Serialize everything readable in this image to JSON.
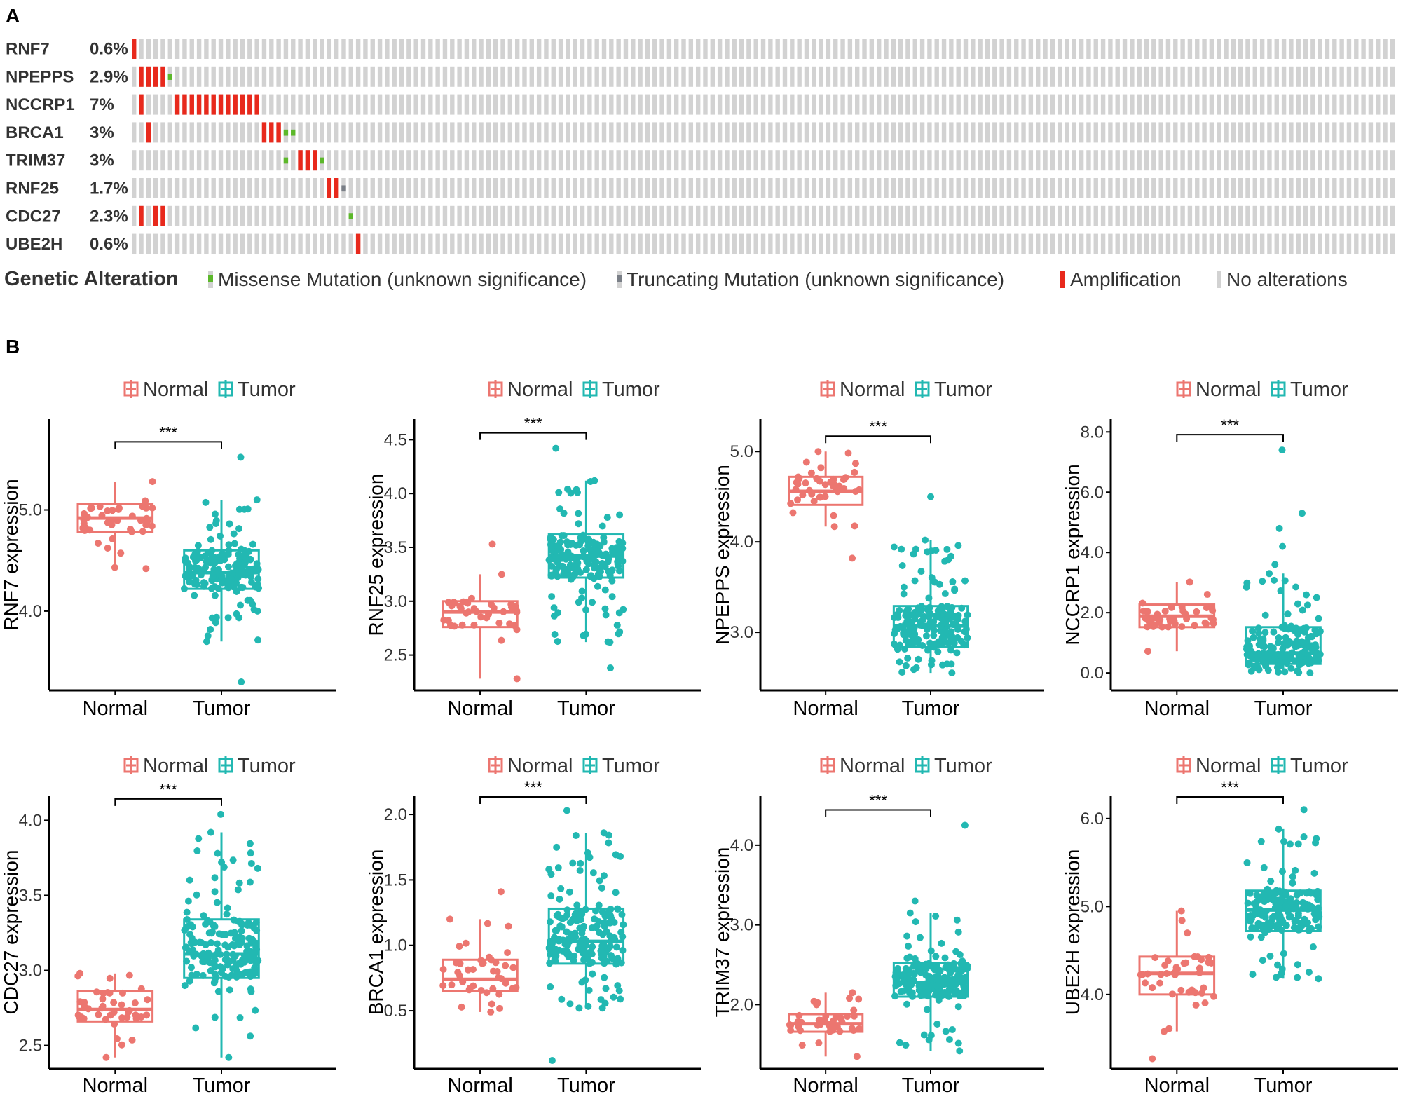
{
  "panel_a_label": "A",
  "panel_b_label": "B",
  "colors": {
    "amplification": "#e8291c",
    "missense": "#5cb82a",
    "truncating": "#7a7f87",
    "no_alteration": "#d2d2d2",
    "normal": "#ec7670",
    "tumor": "#22b8b2"
  },
  "chart_data": [
    {
      "type": "oncoprint",
      "title": "Genetic Alteration",
      "genes": [
        {
          "name": "RNF7",
          "pct": "0.6%"
        },
        {
          "name": "NPEPPS",
          "pct": "2.9%"
        },
        {
          "name": "NCCRP1",
          "pct": "7%"
        },
        {
          "name": "BRCA1",
          "pct": "3%"
        },
        {
          "name": "TRIM37",
          "pct": "3%"
        },
        {
          "name": "RNF25",
          "pct": "1.7%"
        },
        {
          "name": "CDC27",
          "pct": "2.3%"
        },
        {
          "name": "UBE2H",
          "pct": "0.6%"
        }
      ],
      "n_samples": 175,
      "alterations": [
        {
          "gene": "RNF7",
          "type": "amplification",
          "samples": [
            0
          ]
        },
        {
          "gene": "NPEPPS",
          "type": "amplification",
          "samples": [
            1,
            2,
            3,
            4
          ]
        },
        {
          "gene": "NPEPPS",
          "type": "missense",
          "samples": [
            5
          ]
        },
        {
          "gene": "NCCRP1",
          "type": "amplification",
          "samples": [
            1,
            6,
            7,
            8,
            9,
            10,
            11,
            12,
            13,
            14,
            15,
            16,
            17
          ]
        },
        {
          "gene": "BRCA1",
          "type": "amplification",
          "samples": [
            2,
            18,
            19,
            20
          ]
        },
        {
          "gene": "BRCA1",
          "type": "missense",
          "samples": [
            21,
            22
          ]
        },
        {
          "gene": "TRIM37",
          "type": "missense",
          "samples": [
            21,
            26
          ]
        },
        {
          "gene": "TRIM37",
          "type": "amplification",
          "samples": [
            23,
            24,
            25
          ]
        },
        {
          "gene": "RNF25",
          "type": "amplification",
          "samples": [
            27,
            28
          ]
        },
        {
          "gene": "RNF25",
          "type": "truncating",
          "samples": [
            29
          ]
        },
        {
          "gene": "CDC27",
          "type": "amplification",
          "samples": [
            1,
            3,
            4
          ]
        },
        {
          "gene": "CDC27",
          "type": "missense",
          "samples": [
            30
          ]
        },
        {
          "gene": "UBE2H",
          "type": "amplification",
          "samples": [
            31
          ]
        }
      ],
      "legend": [
        {
          "type": "missense",
          "label": "Missense Mutation (unknown significance)"
        },
        {
          "type": "truncating",
          "label": "Truncating Mutation (unknown significance)"
        },
        {
          "type": "amplification",
          "label": "Amplification"
        },
        {
          "type": "no_alteration",
          "label": "No alterations"
        }
      ]
    },
    {
      "type": "box",
      "gene": "RNF7",
      "ylabel": "RNF7 expression",
      "ylim": [
        3.3,
        5.8
      ],
      "yticks": [
        "4.0",
        "5.0"
      ],
      "categories": [
        "Normal",
        "Tumor"
      ],
      "legend": [
        "Normal",
        "Tumor"
      ],
      "significance": "***",
      "groups": [
        {
          "name": "Normal",
          "q1": 4.78,
          "median": 4.92,
          "q3": 5.06,
          "whisker_low": 4.42,
          "whisker_high": 5.28,
          "n": 40,
          "outliers": []
        },
        {
          "name": "Tumor",
          "q1": 4.22,
          "median": 4.38,
          "q3": 4.6,
          "whisker_low": 3.7,
          "whisker_high": 5.1,
          "n": 180,
          "outliers": [
            3.3,
            5.52
          ]
        }
      ]
    },
    {
      "type": "box",
      "gene": "RNF25",
      "ylabel": "RNF25 expression",
      "ylim": [
        2.25,
        4.6
      ],
      "yticks": [
        "2.5",
        "3.0",
        "3.5",
        "4.0",
        "4.5"
      ],
      "categories": [
        "Normal",
        "Tumor"
      ],
      "legend": [
        "Normal",
        "Tumor"
      ],
      "significance": "***",
      "groups": [
        {
          "name": "Normal",
          "q1": 2.76,
          "median": 2.9,
          "q3": 3.0,
          "whisker_low": 2.28,
          "whisker_high": 3.25,
          "n": 40,
          "outliers": [
            3.53
          ]
        },
        {
          "name": "Tumor",
          "q1": 3.22,
          "median": 3.42,
          "q3": 3.62,
          "whisker_low": 2.62,
          "whisker_high": 4.12,
          "n": 180,
          "outliers": [
            2.38,
            4.42
          ]
        }
      ]
    },
    {
      "type": "box",
      "gene": "NPEPPS",
      "ylabel": "NPEPPS expression",
      "ylim": [
        2.45,
        5.25
      ],
      "yticks": [
        "3.0",
        "4.0",
        "5.0"
      ],
      "categories": [
        "Normal",
        "Tumor"
      ],
      "legend": [
        "Normal",
        "Tumor"
      ],
      "significance": "***",
      "groups": [
        {
          "name": "Normal",
          "q1": 4.41,
          "median": 4.56,
          "q3": 4.72,
          "whisker_low": 4.17,
          "whisker_high": 5.0,
          "n": 40,
          "outliers": [
            3.82
          ]
        },
        {
          "name": "Tumor",
          "q1": 2.84,
          "median": 3.07,
          "q3": 3.29,
          "whisker_low": 2.55,
          "whisker_high": 4.02,
          "n": 180,
          "outliers": [
            4.5
          ]
        }
      ]
    },
    {
      "type": "box",
      "gene": "NCCRP1",
      "ylabel": "NCCRP1 expression",
      "ylim": [
        -0.3,
        8.1
      ],
      "yticks": [
        "0.0",
        "2.0",
        "4.0",
        "6.0",
        "8.0"
      ],
      "categories": [
        "Normal",
        "Tumor"
      ],
      "legend": [
        "Normal",
        "Tumor"
      ],
      "significance": "***",
      "groups": [
        {
          "name": "Normal",
          "q1": 1.52,
          "median": 1.88,
          "q3": 2.27,
          "whisker_low": 0.72,
          "whisker_high": 3.02,
          "n": 40,
          "outliers": []
        },
        {
          "name": "Tumor",
          "q1": 0.3,
          "median": 0.66,
          "q3": 1.52,
          "whisker_low": 0.0,
          "whisker_high": 3.3,
          "n": 180,
          "outliers": [
            3.6,
            4.2,
            4.8,
            5.3,
            7.4
          ]
        }
      ]
    },
    {
      "type": "box",
      "gene": "CDC27",
      "ylabel": "CDC27 expression",
      "ylim": [
        2.4,
        4.1
      ],
      "yticks": [
        "2.5",
        "3.0",
        "3.5",
        "4.0"
      ],
      "categories": [
        "Normal",
        "Tumor"
      ],
      "legend": [
        "Normal",
        "Tumor"
      ],
      "significance": "***",
      "groups": [
        {
          "name": "Normal",
          "q1": 2.66,
          "median": 2.74,
          "q3": 2.86,
          "whisker_low": 2.42,
          "whisker_high": 2.98,
          "n": 40,
          "outliers": []
        },
        {
          "name": "Tumor",
          "q1": 2.95,
          "median": 3.11,
          "q3": 3.34,
          "whisker_low": 2.42,
          "whisker_high": 3.92,
          "n": 180,
          "outliers": [
            4.04
          ]
        }
      ]
    },
    {
      "type": "box",
      "gene": "BRCA1",
      "ylabel": "BRCA1 expression",
      "ylim": [
        0.12,
        2.07
      ],
      "yticks": [
        "0.5",
        "1.0",
        "1.5",
        "2.0"
      ],
      "categories": [
        "Normal",
        "Tumor"
      ],
      "legend": [
        "Normal",
        "Tumor"
      ],
      "significance": "***",
      "groups": [
        {
          "name": "Normal",
          "q1": 0.65,
          "median": 0.74,
          "q3": 0.89,
          "whisker_low": 0.49,
          "whisker_high": 1.2,
          "n": 40,
          "outliers": [
            1.41
          ]
        },
        {
          "name": "Tumor",
          "q1": 0.86,
          "median": 1.03,
          "q3": 1.28,
          "whisker_low": 0.52,
          "whisker_high": 1.86,
          "n": 180,
          "outliers": [
            0.12,
            2.03
          ]
        }
      ]
    },
    {
      "type": "box",
      "gene": "TRIM37",
      "ylabel": "TRIM37 expression",
      "ylim": [
        1.3,
        4.5
      ],
      "yticks": [
        "2.0",
        "3.0",
        "4.0"
      ],
      "categories": [
        "Normal",
        "Tumor"
      ],
      "legend": [
        "Normal",
        "Tumor"
      ],
      "significance": "***",
      "groups": [
        {
          "name": "Normal",
          "q1": 1.66,
          "median": 1.76,
          "q3": 1.88,
          "whisker_low": 1.35,
          "whisker_high": 2.15,
          "n": 40,
          "outliers": []
        },
        {
          "name": "Tumor",
          "q1": 2.1,
          "median": 2.28,
          "q3": 2.52,
          "whisker_low": 1.42,
          "whisker_high": 3.15,
          "n": 180,
          "outliers": [
            3.3,
            4.25
          ]
        }
      ]
    },
    {
      "type": "box",
      "gene": "UBE2H",
      "ylabel": "UBE2H expression",
      "ylim": [
        3.25,
        6.15
      ],
      "yticks": [
        "4.0",
        "5.0",
        "6.0"
      ],
      "categories": [
        "Normal",
        "Tumor"
      ],
      "legend": [
        "Normal",
        "Tumor"
      ],
      "significance": "***",
      "groups": [
        {
          "name": "Normal",
          "q1": 4.0,
          "median": 4.24,
          "q3": 4.43,
          "whisker_low": 3.58,
          "whisker_high": 4.95,
          "n": 40,
          "outliers": [
            3.27
          ]
        },
        {
          "name": "Tumor",
          "q1": 4.72,
          "median": 4.96,
          "q3": 5.18,
          "whisker_low": 4.18,
          "whisker_high": 5.88,
          "n": 180,
          "outliers": [
            6.1
          ]
        }
      ]
    }
  ]
}
